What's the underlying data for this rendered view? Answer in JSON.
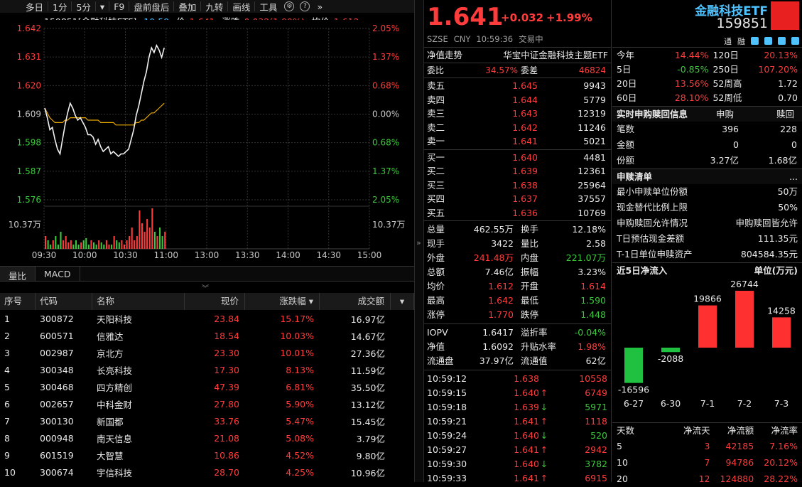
{
  "toolbar": {
    "items": [
      "多日",
      "1分",
      "5分",
      "▾",
      "F9",
      "盘前盘后",
      "叠加",
      "九转",
      "画线",
      "工具"
    ]
  },
  "info": {
    "code_name": "159851[金融科技ETF]",
    "time": "10:59",
    "price_label": "价",
    "price": "1.641",
    "change_label": "涨跌",
    "change": "0.032(1.99%)",
    "avg_label": "均价",
    "avg": "1.612"
  },
  "chart": {
    "left_ticks": [
      "1.642",
      "1.631",
      "1.620",
      "1.609",
      "1.598",
      "1.587",
      "1.576"
    ],
    "right_ticks": [
      "2.05%",
      "1.37%",
      "0.68%",
      "0.00%",
      "0.68%",
      "1.37%",
      "2.05%"
    ],
    "vol_label": "10.37万",
    "time_labels": [
      "09:30",
      "10:00",
      "10:30",
      "11:00",
      "13:00",
      "13:30",
      "14:00",
      "14:30",
      "15:00"
    ]
  },
  "chart_data": {
    "type": "line",
    "ylim": [
      1.571,
      1.642
    ],
    "price": [
      1.609,
      1.605,
      1.6,
      1.601,
      1.596,
      1.592,
      1.59,
      1.596,
      1.602,
      1.607,
      1.611,
      1.609,
      1.606,
      1.604,
      1.605,
      1.603,
      1.601,
      1.598,
      1.598,
      1.597,
      1.594,
      1.596,
      1.593,
      1.591,
      1.592,
      1.593,
      1.59,
      1.591,
      1.59,
      1.589,
      1.59,
      1.59,
      1.591,
      1.592,
      1.596,
      1.6,
      1.606,
      1.61,
      1.615,
      1.62,
      1.624,
      1.63,
      1.634,
      1.632,
      1.635,
      1.633,
      1.63,
      1.634
    ],
    "avg": [
      1.609,
      1.607,
      1.605,
      1.604,
      1.603,
      1.603,
      1.603,
      1.603,
      1.604,
      1.604,
      1.605,
      1.605,
      1.605,
      1.605,
      1.605,
      1.605,
      1.605,
      1.604,
      1.604,
      1.604,
      1.604,
      1.604,
      1.603,
      1.603,
      1.603,
      1.603,
      1.603,
      1.603,
      1.602,
      1.602,
      1.602,
      1.602,
      1.602,
      1.602,
      1.602,
      1.602,
      1.603,
      1.603,
      1.604,
      1.604,
      1.605,
      1.606,
      1.607,
      1.607,
      1.608,
      1.609,
      1.61,
      1.611
    ],
    "volume": [
      0.3,
      0.2,
      0.1,
      0.2,
      0.3,
      0.1,
      0.4,
      0.2,
      0.3,
      0.15,
      0.2,
      0.1,
      0.2,
      0.1,
      0.15,
      0.2,
      0.25,
      0.1,
      0.2,
      0.15,
      0.1,
      0.2,
      0.15,
      0.1,
      0.2,
      0.1,
      0.1,
      0.3,
      0.2,
      0.15,
      0.2,
      0.1,
      0.2,
      0.3,
      0.5,
      0.2,
      0.3,
      0.9,
      0.6,
      0.4,
      0.7,
      0.5,
      0.95,
      0.4,
      0.3,
      0.5,
      0.3,
      0.4
    ]
  },
  "tabs": [
    "量比",
    "MACD"
  ],
  "table": {
    "headers": [
      "序号",
      "代码",
      "名称",
      "现价",
      "涨跌幅 ▾",
      "成交额",
      "▾"
    ],
    "rows": [
      [
        "1",
        "300872",
        "天阳科技",
        "23.84",
        "15.17%",
        "16.97亿"
      ],
      [
        "2",
        "600571",
        "信雅达",
        "18.54",
        "10.03%",
        "14.67亿"
      ],
      [
        "3",
        "002987",
        "京北方",
        "23.30",
        "10.01%",
        "27.36亿"
      ],
      [
        "4",
        "300348",
        "长亮科技",
        "17.30",
        "8.13%",
        "11.59亿"
      ],
      [
        "5",
        "300468",
        "四方精创",
        "47.39",
        "6.81%",
        "35.50亿"
      ],
      [
        "6",
        "002657",
        "中科金财",
        "27.80",
        "5.90%",
        "13.12亿"
      ],
      [
        "7",
        "300130",
        "新国都",
        "33.76",
        "5.47%",
        "15.45亿"
      ],
      [
        "8",
        "000948",
        "南天信息",
        "21.08",
        "5.08%",
        "3.79亿"
      ],
      [
        "9",
        "601519",
        "大智慧",
        "10.86",
        "4.52%",
        "9.80亿"
      ],
      [
        "10",
        "300674",
        "宇信科技",
        "28.70",
        "4.25%",
        "10.96亿"
      ]
    ]
  },
  "quote": {
    "price": "1.641",
    "change": "+0.032",
    "pct": "+1.99%",
    "name": "金融科技ETF",
    "code": "159851",
    "exch": "SZSE",
    "cur": "CNY",
    "time": "10:59:36",
    "status": "交易中",
    "tags": [
      "通",
      "融"
    ]
  },
  "order": {
    "nav_label": "净值走势",
    "index_name": "华宝中证金融科技主题ETF",
    "weibi_l": "委比",
    "weibi": "34.57%",
    "weicha_l": "委差",
    "weicha": "46824",
    "sells": [
      [
        "卖五",
        "1.645",
        "9943"
      ],
      [
        "卖四",
        "1.644",
        "5779"
      ],
      [
        "卖三",
        "1.643",
        "12319"
      ],
      [
        "卖二",
        "1.642",
        "11246"
      ],
      [
        "卖一",
        "1.641",
        "5021"
      ]
    ],
    "buys": [
      [
        "买一",
        "1.640",
        "4481"
      ],
      [
        "买二",
        "1.639",
        "12361"
      ],
      [
        "买三",
        "1.638",
        "25964"
      ],
      [
        "买四",
        "1.637",
        "37557"
      ],
      [
        "买五",
        "1.636",
        "10769"
      ]
    ]
  },
  "stats": [
    [
      "总量",
      "462.55万",
      "换手",
      "12.18%"
    ],
    [
      "现手",
      "3422",
      "量比",
      "2.58"
    ],
    [
      "外盘",
      "241.48万",
      "内盘",
      "221.07万"
    ],
    [
      "总额",
      "7.46亿",
      "振幅",
      "3.23%"
    ],
    [
      "均价",
      "1.612",
      "开盘",
      "1.614"
    ],
    [
      "最高",
      "1.642",
      "最低",
      "1.590"
    ],
    [
      "涨停",
      "1.770",
      "跌停",
      "1.448"
    ]
  ],
  "iopv": [
    [
      "IOPV",
      "1.6417",
      "溢折率",
      "-0.04%"
    ],
    [
      "净值",
      "1.6092",
      "升贴水率",
      "1.98%"
    ],
    [
      "流通盘",
      "37.97亿",
      "流通值",
      "62亿"
    ]
  ],
  "ticks": [
    [
      "10:59:12",
      "1.638",
      "",
      "10558"
    ],
    [
      "10:59:15",
      "1.640",
      "↑",
      "6749"
    ],
    [
      "10:59:18",
      "1.639",
      "↓",
      "5971"
    ],
    [
      "10:59:21",
      "1.641",
      "↑",
      "1118"
    ],
    [
      "10:59:24",
      "1.640",
      "↓",
      "520"
    ],
    [
      "10:59:27",
      "1.641",
      "↑",
      "2942"
    ],
    [
      "10:59:30",
      "1.640",
      "↓",
      "3782"
    ],
    [
      "10:59:33",
      "1.641",
      "↑",
      "6915"
    ]
  ],
  "perf": [
    [
      "今年",
      "14.44%",
      "120日",
      "20.13%"
    ],
    [
      "5日",
      "-0.85%",
      "250日",
      "107.20%"
    ],
    [
      "20日",
      "13.56%",
      "52周高",
      "1.72"
    ],
    [
      "60日",
      "28.10%",
      "52周低",
      "0.70"
    ]
  ],
  "subred": {
    "title": "实时申购赎回信息",
    "h1": "申购",
    "h2": "赎回",
    "rows": [
      [
        "笔数",
        "396",
        "228"
      ],
      [
        "金额",
        "0",
        "0"
      ],
      [
        "份额",
        "3.27亿",
        "1.68亿"
      ]
    ]
  },
  "list": {
    "title": "申赎清单",
    "more": "...",
    "rows": [
      [
        "最小申赎单位份额",
        "50万"
      ],
      [
        "现金替代比例上限",
        "50%"
      ],
      [
        "申购赎回允许情况",
        "申购赎回皆允许"
      ],
      [
        "T日预估现金差额",
        "111.35元"
      ],
      [
        "T-1日单位申赎资产",
        "804584.35元"
      ]
    ]
  },
  "flow": {
    "title": "近5日净流入",
    "unit": "单位(万元)",
    "dates": [
      "6-27",
      "6-30",
      "7-1",
      "7-2",
      "7-3"
    ],
    "values": [
      -16596,
      -2088,
      19866,
      26744,
      14258
    ],
    "labels": [
      "-16596",
      "-2088",
      "19866",
      "26744",
      "14258"
    ]
  },
  "flowtbl": {
    "headers": [
      "天数",
      "净流天",
      "净流额",
      "净流率"
    ],
    "rows": [
      [
        "5",
        "3",
        "42185",
        "7.16%"
      ],
      [
        "10",
        "7",
        "94786",
        "20.12%"
      ],
      [
        "20",
        "12",
        "124880",
        "28.22%"
      ]
    ]
  }
}
